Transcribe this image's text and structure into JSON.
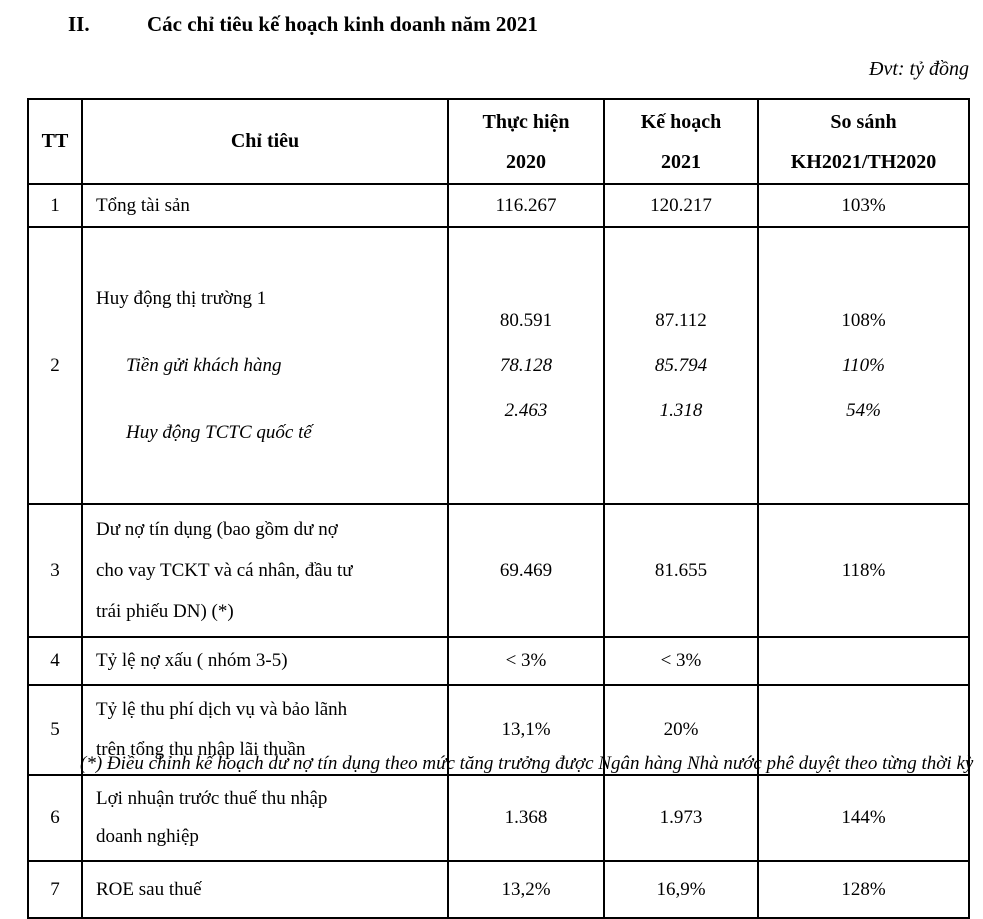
{
  "page": {
    "section_number": "II.",
    "title": "Các chỉ tiêu kế hoạch kinh doanh năm 2021",
    "unit_label": "Đvt: tỷ đồng",
    "footnote_partial": "(*) Điều chỉnh kế hoạch dư nợ tín dụng theo mức tăng trưởng được Ngân hàng Nhà nước phê duyệt theo từng thời kỳ"
  },
  "table": {
    "header": {
      "tt": "TT",
      "indicator": "Chỉ tiêu",
      "actual_l1": "Thực hiện",
      "actual_l2": "2020",
      "plan_l1": "Kế hoạch",
      "plan_l2": "2021",
      "compare_l1": "So sánh",
      "compare_l2": "KH2021/TH2020"
    },
    "rows": [
      {
        "tt": "1",
        "indicator": "Tổng tài sản",
        "actual": "116.267",
        "plan": "120.217",
        "compare": "103%"
      },
      {
        "tt": "2",
        "indicator": "Huy động thị trường 1",
        "actual": "80.591",
        "plan": "87.112",
        "compare": "108%",
        "sub1": {
          "indicator": "Tiền gửi khách hàng",
          "actual": "78.128",
          "plan": "85.794",
          "compare": "110%"
        },
        "sub2": {
          "indicator": "Huy động TCTC quốc tế",
          "actual": "2.463",
          "plan": "1.318",
          "compare": "54%"
        }
      },
      {
        "tt": "3",
        "indicator": "Dư nợ tín dụng (bao gồm dư nợ\ncho vay TCKT và cá nhân, đầu tư\ntrái phiếu DN) (*)",
        "actual": "69.469",
        "plan": "81.655",
        "compare": "118%"
      },
      {
        "tt": "4",
        "indicator": "Tỷ lệ nợ xấu ( nhóm 3-5)",
        "actual": "< 3%",
        "plan": "< 3%",
        "compare": ""
      },
      {
        "tt": "5",
        "indicator": "Tỷ lệ thu phí dịch vụ và bảo lãnh\ntrên tổng thu nhập lãi thuần",
        "actual": "13,1%",
        "plan": "20%",
        "compare": ""
      },
      {
        "tt": "6",
        "indicator": "Lợi nhuận trước thuế thu nhập\ndoanh nghiệp",
        "actual": "1.368",
        "plan": "1.973",
        "compare": "144%"
      },
      {
        "tt": "7",
        "indicator": "ROE sau thuế",
        "actual": "13,2%",
        "plan": "16,9%",
        "compare": "128%"
      }
    ]
  }
}
